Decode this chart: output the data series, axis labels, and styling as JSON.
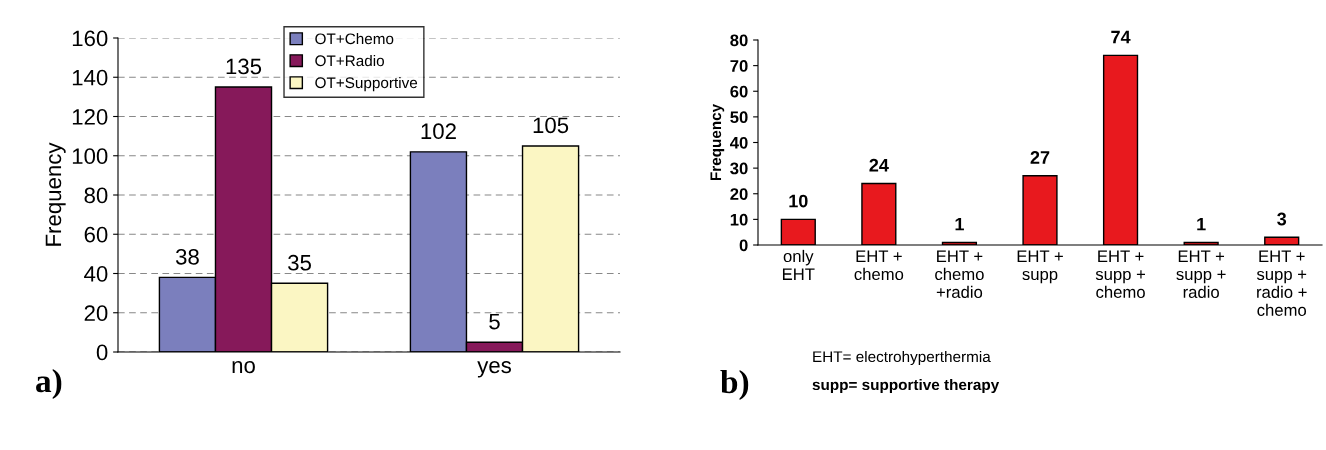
{
  "chart_data": [
    {
      "type": "bar",
      "ylabel": "Frequency",
      "categories": [
        "no",
        "yes"
      ],
      "series": [
        {
          "name": "OT+Chemo",
          "color": "#7b7fbd",
          "values": [
            38,
            102
          ]
        },
        {
          "name": "OT+Radio",
          "color": "#86195a",
          "values": [
            135,
            5
          ]
        },
        {
          "name": "OT+Supportive",
          "color": "#fbf6c3",
          "values": [
            35,
            105
          ]
        }
      ],
      "ylim": [
        0,
        160
      ],
      "yticks": [
        0,
        20,
        40,
        60,
        80,
        100,
        120,
        140,
        160
      ],
      "grid": "y",
      "legend": "top",
      "data_labels": true,
      "annotations": [
        "a)"
      ]
    },
    {
      "type": "bar",
      "ylabel": "Frequency",
      "categories": [
        "only\nEHT",
        "EHT +\nchemo",
        "EHT +\nchemo\n+radio",
        "EHT +\nsupp",
        "EHT +\nsupp +\nchemo",
        "EHT +\nsupp +\nradio",
        "EHT +\nsupp +\nradio +\nchemo"
      ],
      "values": [
        10,
        24,
        1,
        27,
        74,
        1,
        3
      ],
      "color": "#e8191e",
      "ylim": [
        0,
        80
      ],
      "yticks": [
        0,
        10,
        20,
        30,
        40,
        50,
        60,
        70,
        80
      ],
      "grid": false,
      "data_labels": true,
      "annotations": [
        "b)",
        "EHT= electrohyperthermia",
        "supp= supportive therapy"
      ]
    }
  ]
}
